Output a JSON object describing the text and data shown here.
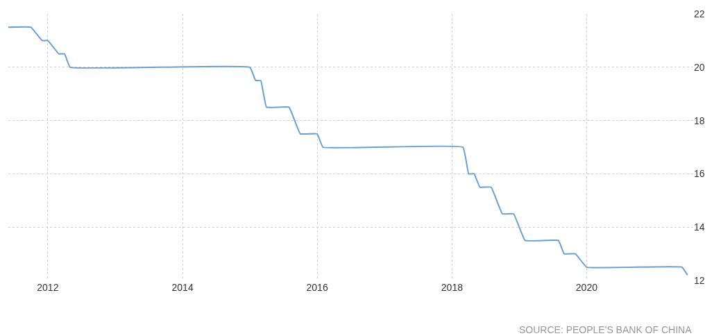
{
  "chart_data": {
    "type": "line",
    "x": [
      "2011-06",
      "2011-10",
      "2011-12",
      "2012-01",
      "2012-03",
      "2012-04",
      "2012-05",
      "2015-01",
      "2015-02",
      "2015-03",
      "2015-04",
      "2015-08",
      "2015-10",
      "2016-01",
      "2016-02",
      "2018-03",
      "2018-04",
      "2018-05",
      "2018-06",
      "2018-08",
      "2018-10",
      "2018-12",
      "2019-02",
      "2019-08",
      "2019-09",
      "2019-11",
      "2020-01",
      "2021-06",
      "2021-07"
    ],
    "series": [
      {
        "color": "#6a9fd4",
        "values": [
          21.5,
          21.5,
          21.0,
          21.0,
          20.5,
          20.5,
          20.0,
          20.0,
          19.5,
          19.5,
          18.5,
          18.5,
          17.5,
          17.5,
          17.0,
          17.0,
          16.0,
          16.0,
          15.5,
          15.5,
          14.5,
          14.5,
          13.5,
          13.5,
          13.0,
          13.0,
          12.5,
          12.5,
          12.2
        ]
      }
    ],
    "xlim": [
      "2011-06",
      "2021-08"
    ],
    "xticks": [
      {
        "value": "2012",
        "label": "2012"
      },
      {
        "value": "2014",
        "label": "2014"
      },
      {
        "value": "2016",
        "label": "2016"
      },
      {
        "value": "2018",
        "label": "2018"
      },
      {
        "value": "2020",
        "label": "2020"
      }
    ],
    "ylim": [
      12,
      22
    ],
    "yticks": [
      12,
      14,
      16,
      18,
      20,
      22
    ],
    "grid": true,
    "marker": "none",
    "line_style": "solid",
    "annotations": [
      "SOURCE: PEOPLE'S BANK OF CHINA"
    ]
  }
}
